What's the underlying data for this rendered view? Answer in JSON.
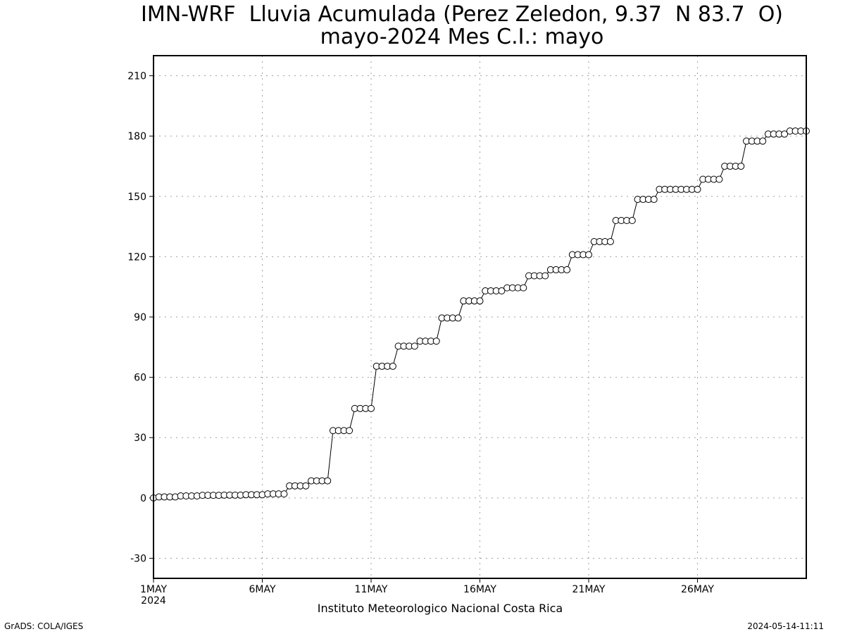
{
  "title_line1": "IMN-WRF  Lluvia Acumulada (Perez Zeledon, 9.37  N 83.7  O)",
  "title_line2": "mayo-2024 Mes C.I.: mayo",
  "credit": "Instituto Meteorologico Nacional Costa Rica",
  "footer_left": "GrADS: COLA/IGES",
  "footer_right": "2024-05-14-11:11",
  "colors": {
    "line": "#000000",
    "marker_fill": "#ffffff",
    "grid": "#a0a0a0",
    "axis": "#000000"
  },
  "chart_data": {
    "type": "line",
    "title": "IMN-WRF  Lluvia Acumulada (Perez Zeledon, 9.37  N 83.7  O)",
    "subtitle": "mayo-2024 Mes C.I.: mayo",
    "xlabel": "",
    "ylabel": "",
    "x_range_days": [
      1,
      31
    ],
    "x_tick_days": [
      1,
      6,
      11,
      16,
      21,
      26
    ],
    "x_tick_labels": [
      "1MAY",
      "6MAY",
      "11MAY",
      "16MAY",
      "21MAY",
      "26MAY"
    ],
    "x_year_label": "2024",
    "ylim": [
      -40,
      220
    ],
    "y_ticks": [
      -30,
      0,
      30,
      60,
      90,
      120,
      150,
      180,
      210
    ],
    "grid": true,
    "marker": "open-circle",
    "step_hours": 6,
    "series": [
      {
        "values": [
          0,
          0.5,
          0.5,
          0.5,
          0.5,
          1,
          1,
          1,
          1,
          1.3,
          1.3,
          1.3,
          1.3,
          1.4,
          1.4,
          1.4,
          1.4,
          1.6,
          1.6,
          1.6,
          1.6,
          2,
          2,
          2,
          2,
          6,
          6,
          6,
          6,
          8.5,
          8.5,
          8.5,
          8.5,
          33.5,
          33.5,
          33.5,
          33.5,
          44.5,
          44.5,
          44.5,
          44.5,
          65.5,
          65.5,
          65.5,
          65.5,
          75.5,
          75.5,
          75.5,
          75.5,
          78,
          78,
          78,
          78,
          89.5,
          89.5,
          89.5,
          89.5,
          98,
          98,
          98,
          98,
          103,
          103,
          103,
          103,
          104.5,
          104.5,
          104.5,
          104.5,
          110.5,
          110.5,
          110.5,
          110.5,
          113.5,
          113.5,
          113.5,
          113.5,
          121,
          121,
          121,
          121,
          127.5,
          127.5,
          127.5,
          127.5,
          138,
          138,
          138,
          138,
          148.5,
          148.5,
          148.5,
          148.5,
          153.5,
          153.5,
          153.5,
          153.5,
          153.5,
          153.5,
          153.5,
          153.5,
          158.5,
          158.5,
          158.5,
          158.5,
          165,
          165,
          165,
          165,
          177.5,
          177.5,
          177.5,
          177.5,
          181,
          181,
          181,
          181,
          182.5,
          182.5,
          182.5,
          182.5
        ]
      }
    ]
  }
}
